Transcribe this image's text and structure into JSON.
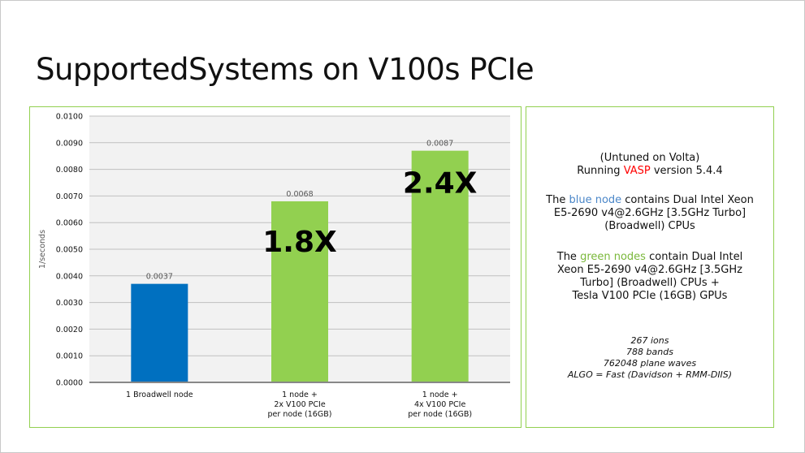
{
  "slide": {
    "title": "SupportedSystems on V100s PCIe"
  },
  "chart_data": {
    "type": "bar",
    "categories": [
      [
        "1 Broadwell node"
      ],
      [
        "1 node +",
        "2x V100 PCIe",
        "per node (16GB)"
      ],
      [
        "1 node +",
        "4x V100 PCIe",
        "per node (16GB)"
      ]
    ],
    "values": [
      0.0037,
      0.0068,
      0.0087
    ],
    "data_labels": [
      "0.0037",
      "0.0068",
      "0.0087"
    ],
    "bar_colors": [
      "#0070c0",
      "#92d050",
      "#92d050"
    ],
    "annotations": [
      "",
      "1.8X",
      "2.4X"
    ],
    "ylabel": "1/seconds",
    "xlabel": "",
    "ylim": [
      0,
      0.01
    ],
    "yticks": [
      "0.0000",
      "0.0010",
      "0.0020",
      "0.0030",
      "0.0040",
      "0.0050",
      "0.0060",
      "0.0070",
      "0.0080",
      "0.0090",
      "0.0100"
    ],
    "grid": true,
    "legend": "none"
  },
  "info": {
    "line1": "(Untuned on Volta)",
    "line2_pre": "Running ",
    "line2_hl": "VASP",
    "line2_post": " version 5.4.4",
    "blue_pre": "The ",
    "blue_hl": "blue node",
    "blue_post": " contains Dual Intel Xeon",
    "blue_l2": "E5-2690 v4@2.6GHz [3.5GHz Turbo]",
    "blue_l3": "(Broadwell) CPUs",
    "green_pre": "The ",
    "green_hl": "green nodes",
    "green_post": " contain Dual Intel",
    "green_l2": "Xeon E5-2690 v4@2.6GHz [3.5GHz",
    "green_l3": "Turbo] (Broadwell) CPUs +",
    "green_l4": "Tesla V100 PCIe (16GB) GPUs",
    "params": [
      "267 ions",
      "788 bands",
      "762048 plane waves",
      "ALGO = Fast (Davidson + RMM-DIIS)"
    ]
  },
  "colors": {
    "vasp": "#ff0000",
    "blue": "#0070c0",
    "green": "#92d050"
  }
}
